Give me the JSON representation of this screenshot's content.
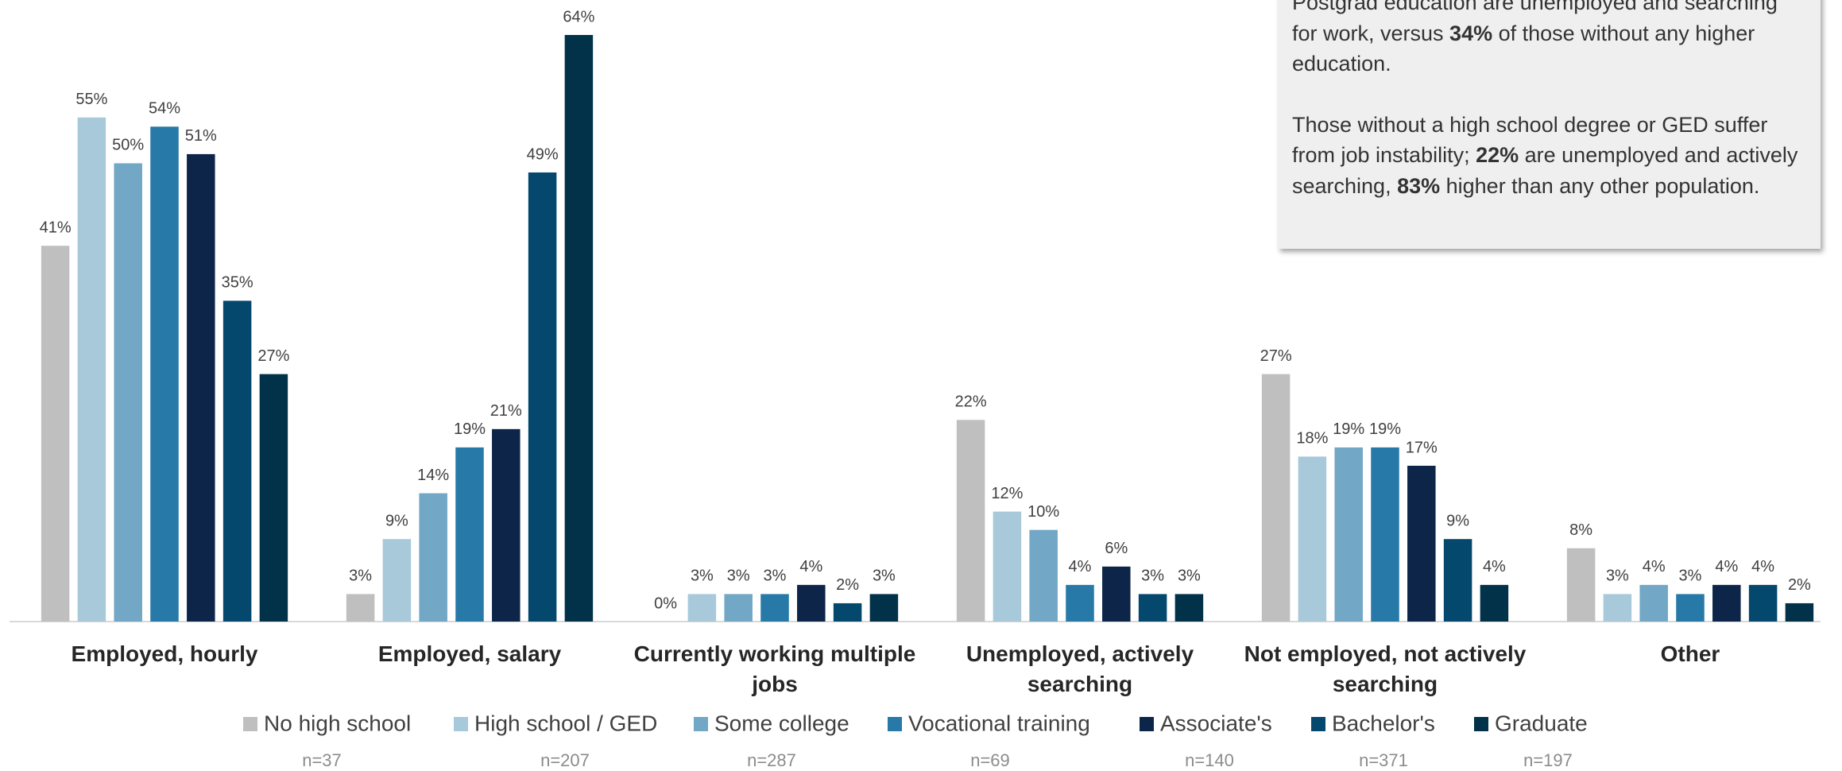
{
  "chart_data": {
    "type": "bar",
    "categories": [
      "Employed, hourly",
      "Employed, salary",
      "Currently working multiple jobs",
      "Unemployed, actively searching",
      "Not employed, not actively searching",
      "Other"
    ],
    "series": [
      {
        "name": "No high school",
        "color": "#bfbfbf",
        "sample_label": "n=37",
        "values": [
          41,
          3,
          0,
          22,
          27,
          8
        ],
        "value_labels": [
          "41%",
          "3%",
          "0%",
          "22%",
          "27%",
          "8%"
        ]
      },
      {
        "name": "High school / GED",
        "color": "#a7c9da",
        "sample_label": "n=207",
        "values": [
          55,
          9,
          3,
          12,
          18,
          3
        ],
        "value_labels": [
          "55%",
          "9%",
          "3%",
          "12%",
          "18%",
          "3%"
        ]
      },
      {
        "name": "Some college",
        "color": "#72a7c5",
        "sample_label": "n=287",
        "values": [
          50,
          14,
          3,
          10,
          19,
          4
        ],
        "value_labels": [
          "50%",
          "14%",
          "3%",
          "10%",
          "19%",
          "4%"
        ]
      },
      {
        "name": "Vocational training",
        "color": "#2779a7",
        "sample_label": "n=69",
        "values": [
          54,
          19,
          3,
          4,
          19,
          3
        ],
        "value_labels": [
          "54%",
          "19%",
          "3%",
          "4%",
          "19%",
          "3%"
        ]
      },
      {
        "name": "Associate's",
        "color": "#0d2548",
        "sample_label": "n=140",
        "values": [
          51,
          21,
          4,
          6,
          17,
          4
        ],
        "value_labels": [
          "51%",
          "21%",
          "4%",
          "6%",
          "17%",
          "4%"
        ]
      },
      {
        "name": "Bachelor's",
        "color": "#05486e",
        "sample_label": "n=371",
        "values": [
          35,
          49,
          2,
          3,
          9,
          4
        ],
        "value_labels": [
          "35%",
          "49%",
          "2%",
          "3%",
          "9%",
          "4%"
        ]
      },
      {
        "name": "Graduate",
        "color": "#01324a",
        "sample_label": "n=197",
        "values": [
          27,
          64,
          3,
          3,
          4,
          2
        ],
        "value_labels": [
          "27%",
          "64%",
          "3%",
          "3%",
          "4%",
          "2%"
        ]
      }
    ],
    "annotation": [
      [
        {
          "text": "Postgrad education are unemployed and searching for work, versus "
        },
        {
          "text": "34%",
          "bold": true
        },
        {
          "text": " of those without any higher education."
        }
      ],
      [
        {
          "text": "Those without a high school degree or GED suffer from job instability; "
        },
        {
          "text": "22%",
          "bold": true
        },
        {
          "text": " are unemployed and actively searching, "
        },
        {
          "text": "83%",
          "bold": true
        },
        {
          "text": " higher than any other population."
        }
      ]
    ]
  }
}
